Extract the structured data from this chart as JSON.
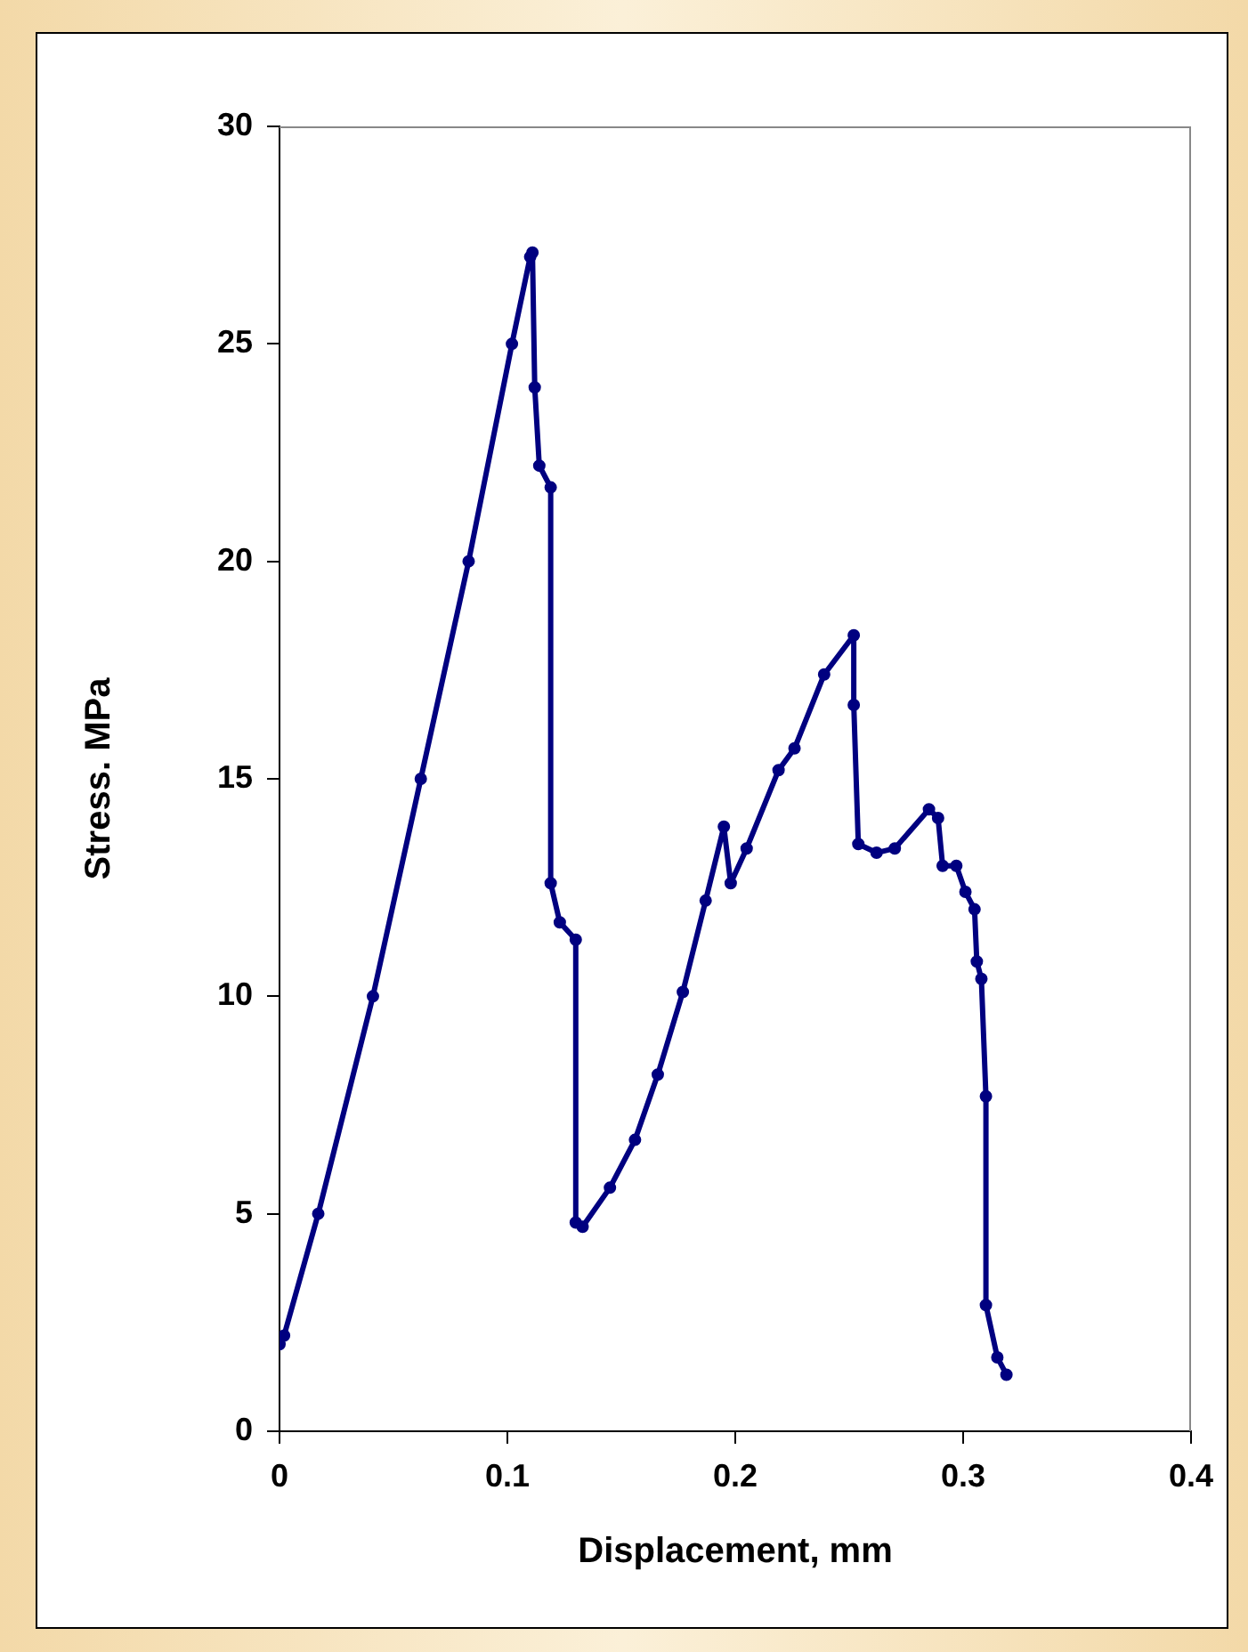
{
  "chart_data": {
    "type": "line",
    "xlabel": "Displacement, mm",
    "ylabel": "Stress. MPa",
    "xlim": [
      0,
      0.4
    ],
    "xticks": [
      0,
      0.1,
      0.2,
      0.3,
      0.4
    ],
    "ylim": [
      0,
      30
    ],
    "yticks": [
      0,
      5,
      10,
      15,
      20,
      25,
      30
    ],
    "grid": false,
    "legend": false,
    "marker": "circle",
    "line_style": "solid",
    "series": [
      {
        "color": "#000080",
        "x": [
          0,
          0.002,
          0.017,
          0.041,
          0.062,
          0.083,
          0.102,
          0.11,
          0.111,
          0.112,
          0.114,
          0.119,
          0.119,
          0.123,
          0.13,
          0.13,
          0.133,
          0.145,
          0.156,
          0.166,
          0.177,
          0.187,
          0.195,
          0.198,
          0.205,
          0.219,
          0.226,
          0.239,
          0.252,
          0.252,
          0.254,
          0.262,
          0.27,
          0.285,
          0.289,
          0.291,
          0.297,
          0.301,
          0.305,
          0.306,
          0.308,
          0.31,
          0.31,
          0.315,
          0.319
        ],
        "values": [
          2.0,
          2.2,
          5,
          10,
          15,
          20,
          25,
          27.0,
          27.1,
          24.0,
          22.2,
          21.7,
          12.6,
          11.7,
          11.3,
          4.8,
          4.7,
          5.6,
          6.7,
          8.2,
          10.1,
          12.2,
          13.9,
          12.6,
          13.4,
          15.2,
          15.7,
          17.4,
          18.3,
          16.7,
          13.5,
          13.3,
          13.4,
          14.3,
          14.1,
          13.0,
          13.0,
          12.4,
          12.0,
          10.8,
          10.4,
          7.7,
          2.9,
          1.7,
          1.3
        ]
      }
    ]
  }
}
